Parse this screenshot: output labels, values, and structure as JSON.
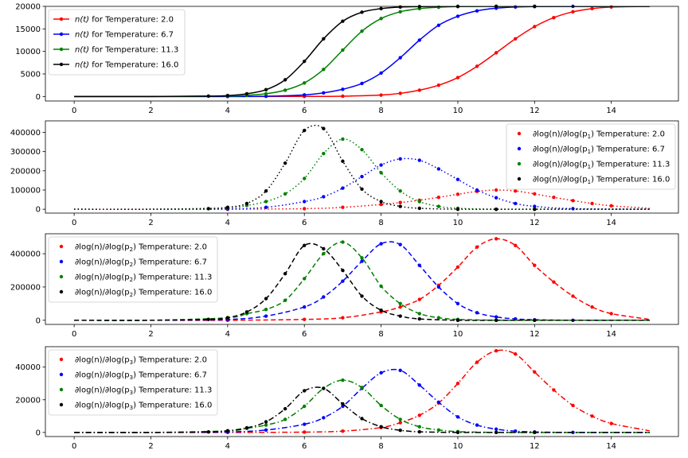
{
  "chart_data": [
    {
      "type": "line",
      "title": "",
      "xlabel": "",
      "ylabel": "",
      "xlim": [
        -0.75,
        15.75
      ],
      "ylim": [
        -1000,
        20000
      ],
      "xticks": [
        0,
        2,
        4,
        6,
        8,
        10,
        12,
        14
      ],
      "yticks": [
        0,
        5000,
        10000,
        15000,
        20000
      ],
      "grid": false,
      "legend": "upper-left",
      "line_style": "solid",
      "marker_style": "line-with-markers",
      "series": [
        {
          "name_prefix": "n(t)",
          "name_suffix": " for Temperature: 2.0",
          "color": "#ff0000",
          "x": [
            0,
            2,
            4,
            6,
            7,
            8,
            8.5,
            9,
            9.5,
            10,
            10.5,
            11,
            11.5,
            12,
            12.5,
            13,
            13.5,
            14,
            15
          ],
          "y": [
            0,
            0,
            0,
            10,
            60,
            320,
            700,
            1400,
            2500,
            4200,
            6700,
            9700,
            12800,
            15500,
            17500,
            18800,
            19500,
            19850,
            20000
          ]
        },
        {
          "name_prefix": "n(t)",
          "name_suffix": " for Temperature: 6.7",
          "color": "#0000ff",
          "x": [
            0,
            2,
            4,
            5,
            6,
            6.5,
            7,
            7.5,
            8,
            8.5,
            9,
            9.5,
            10,
            10.5,
            11,
            11.5,
            12,
            13,
            15
          ],
          "y": [
            0,
            0,
            0,
            50,
            350,
            800,
            1600,
            2900,
            5200,
            8600,
            12500,
            15800,
            17800,
            19000,
            19600,
            19850,
            19950,
            20000,
            20000
          ]
        },
        {
          "name_prefix": "n(t)",
          "name_suffix": " for Temperature: 11.3",
          "color": "#008000",
          "x": [
            0,
            2,
            4,
            4.5,
            5,
            5.5,
            6,
            6.5,
            7,
            7.5,
            8,
            8.5,
            9,
            9.5,
            10,
            11,
            12,
            15
          ],
          "y": [
            0,
            0,
            100,
            250,
            600,
            1400,
            3000,
            6000,
            10300,
            14500,
            17300,
            18800,
            19500,
            19800,
            19950,
            20000,
            20000,
            20000
          ]
        },
        {
          "name_prefix": "n(t)",
          "name_suffix": " for Temperature: 16.0",
          "color": "#000000",
          "x": [
            0,
            2,
            3.5,
            4,
            4.5,
            5,
            5.5,
            6,
            6.5,
            7,
            7.5,
            8,
            8.5,
            9,
            10,
            11,
            12,
            15
          ],
          "y": [
            0,
            0,
            80,
            200,
            600,
            1500,
            3700,
            7800,
            12800,
            16700,
            18700,
            19500,
            19850,
            19950,
            20000,
            20000,
            20000,
            20000
          ]
        }
      ]
    },
    {
      "type": "line",
      "title": "",
      "xlabel": "",
      "ylabel": "",
      "xlim": [
        -0.75,
        15.75
      ],
      "ylim": [
        -20000,
        460000
      ],
      "xticks": [
        0,
        2,
        4,
        6,
        8,
        10,
        12,
        14
      ],
      "yticks": [
        0,
        100000,
        200000,
        300000,
        400000
      ],
      "grid": false,
      "legend": "upper-right",
      "line_style": "dotted",
      "marker_style": "dots-with-curve",
      "series": [
        {
          "name_prefix": "∂log(n)/∂log(p",
          "name_sub": "1",
          "name_suffix": ") Temperature: 2.0",
          "color": "#ff0000",
          "x": [
            0,
            2,
            4,
            6,
            7,
            8,
            8.5,
            9,
            9.5,
            10,
            10.5,
            11,
            11.5,
            12,
            12.5,
            13,
            13.5,
            14,
            15
          ],
          "y": [
            0,
            0,
            0,
            3000,
            10000,
            25000,
            35000,
            47000,
            62000,
            78000,
            93000,
            100000,
            95000,
            80000,
            62000,
            45000,
            30000,
            18000,
            5000
          ]
        },
        {
          "name_prefix": "∂log(n)/∂log(p",
          "name_sub": "1",
          "name_suffix": ") Temperature: 6.7",
          "color": "#0000ff",
          "x": [
            0,
            2,
            4,
            5,
            6,
            6.5,
            7,
            7.5,
            8,
            8.5,
            9,
            9.5,
            10,
            10.5,
            11,
            11.5,
            12,
            13,
            15
          ],
          "y": [
            0,
            0,
            2000,
            10000,
            40000,
            65000,
            110000,
            170000,
            230000,
            262000,
            255000,
            210000,
            155000,
            100000,
            60000,
            30000,
            15000,
            3000,
            0
          ]
        },
        {
          "name_prefix": "∂log(n)/∂log(p",
          "name_sub": "1",
          "name_suffix": ") Temperature: 11.3",
          "color": "#008000",
          "x": [
            0,
            2,
            4,
            4.5,
            5,
            5.5,
            6,
            6.5,
            7,
            7.5,
            8,
            8.5,
            9,
            9.5,
            10,
            11,
            12,
            15
          ],
          "y": [
            0,
            0,
            8000,
            20000,
            40000,
            80000,
            160000,
            290000,
            365000,
            310000,
            190000,
            95000,
            40000,
            15000,
            5000,
            0,
            0,
            0
          ]
        },
        {
          "name_prefix": "∂log(n)/∂log(p",
          "name_sub": "1",
          "name_suffix": ") Temperature: 16.0",
          "color": "#000000",
          "x": [
            0,
            2,
            3.5,
            4,
            4.5,
            5,
            5.5,
            6,
            6.5,
            7,
            7.5,
            8,
            8.5,
            9,
            10,
            11,
            12,
            15
          ],
          "y": [
            0,
            0,
            3000,
            10000,
            30000,
            95000,
            240000,
            410000,
            420000,
            250000,
            105000,
            40000,
            15000,
            5000,
            0,
            0,
            0,
            0
          ]
        }
      ]
    },
    {
      "type": "line",
      "title": "",
      "xlabel": "",
      "ylabel": "",
      "xlim": [
        -0.75,
        15.75
      ],
      "ylim": [
        -25000,
        520000
      ],
      "xticks": [
        0,
        2,
        4,
        6,
        8,
        10,
        12,
        14
      ],
      "yticks": [
        0,
        200000,
        400000
      ],
      "grid": false,
      "legend": "upper-left",
      "line_style": "dashed",
      "marker_style": "dots-with-curve",
      "series": [
        {
          "name_prefix": "∂log(n)/∂log(p",
          "name_sub": "2",
          "name_suffix": ") Temperature: 2.0",
          "color": "#ff0000",
          "x": [
            0,
            2,
            4,
            6,
            7,
            8,
            8.5,
            9,
            9.5,
            10,
            10.5,
            11,
            11.5,
            12,
            12.5,
            13,
            13.5,
            14,
            15
          ],
          "y": [
            0,
            0,
            0,
            5000,
            15000,
            50000,
            80000,
            125000,
            210000,
            320000,
            440000,
            490000,
            450000,
            330000,
            230000,
            145000,
            80000,
            40000,
            5000
          ]
        },
        {
          "name_prefix": "∂log(n)/∂log(p",
          "name_sub": "2",
          "name_suffix": ") Temperature: 6.7",
          "color": "#0000ff",
          "x": [
            0,
            2,
            4,
            5,
            6,
            6.5,
            7,
            7.5,
            8,
            8.5,
            9,
            9.5,
            10,
            10.5,
            11,
            11.5,
            12,
            13,
            15
          ],
          "y": [
            0,
            0,
            5000,
            25000,
            80000,
            140000,
            235000,
            355000,
            460000,
            455000,
            330000,
            200000,
            100000,
            45000,
            20000,
            8000,
            3000,
            0,
            0
          ]
        },
        {
          "name_prefix": "∂log(n)/∂log(p",
          "name_sub": "2",
          "name_suffix": ") Temperature: 11.3",
          "color": "#008000",
          "x": [
            0,
            2,
            4,
            4.5,
            5,
            5.5,
            6,
            6.5,
            7,
            7.5,
            8,
            8.5,
            9,
            9.5,
            10,
            11,
            12,
            15
          ],
          "y": [
            0,
            0,
            15000,
            40000,
            65000,
            120000,
            250000,
            400000,
            470000,
            375000,
            205000,
            100000,
            40000,
            15000,
            5000,
            0,
            0,
            0
          ]
        },
        {
          "name_prefix": "∂log(n)/∂log(p",
          "name_sub": "2",
          "name_suffix": ") Temperature: 16.0",
          "color": "#000000",
          "x": [
            0,
            2,
            3.5,
            4,
            4.5,
            5,
            5.5,
            6,
            6.5,
            7,
            7.5,
            8,
            8.5,
            9,
            10,
            11,
            12,
            15
          ],
          "y": [
            0,
            0,
            5000,
            15000,
            50000,
            130000,
            280000,
            450000,
            430000,
            300000,
            145000,
            60000,
            25000,
            8000,
            0,
            0,
            0,
            0
          ]
        }
      ]
    },
    {
      "type": "line",
      "title": "",
      "xlabel": "",
      "ylabel": "",
      "xlim": [
        -0.75,
        15.75
      ],
      "ylim": [
        -2500,
        52500
      ],
      "xticks": [
        0,
        2,
        4,
        6,
        8,
        10,
        12,
        14
      ],
      "yticks": [
        0,
        20000,
        40000
      ],
      "grid": false,
      "legend": "upper-left",
      "line_style": "dashdot",
      "marker_style": "dots-with-curve",
      "series": [
        {
          "name_prefix": "∂log(n)/∂log(p",
          "name_sub": "3",
          "name_suffix": ") Temperature: 2.0",
          "color": "#ff0000",
          "x": [
            0,
            2,
            4,
            6,
            7,
            8,
            8.5,
            9,
            9.5,
            10,
            10.5,
            11,
            11.5,
            12,
            12.5,
            13,
            13.5,
            14,
            15
          ],
          "y": [
            0,
            0,
            0,
            200,
            800,
            3000,
            6000,
            10500,
            18000,
            30000,
            43000,
            50000,
            48000,
            37000,
            26000,
            16500,
            10000,
            5500,
            1000
          ]
        },
        {
          "name_prefix": "∂log(n)/∂log(p",
          "name_sub": "3",
          "name_suffix": ") Temperature: 6.7",
          "color": "#0000ff",
          "x": [
            0,
            2,
            4,
            5,
            6,
            6.5,
            7,
            7.5,
            8,
            8.5,
            9,
            9.5,
            10,
            10.5,
            11,
            11.5,
            12,
            13,
            15
          ],
          "y": [
            0,
            0,
            300,
            1500,
            5000,
            9000,
            16000,
            27000,
            36500,
            38000,
            29000,
            18500,
            9500,
            4500,
            2000,
            800,
            300,
            0,
            0
          ]
        },
        {
          "name_prefix": "∂log(n)/∂log(p",
          "name_sub": "3",
          "name_suffix": ") Temperature: 11.3",
          "color": "#008000",
          "x": [
            0,
            2,
            4,
            4.5,
            5,
            5.5,
            6,
            6.5,
            7,
            7.5,
            8,
            8.5,
            9,
            9.5,
            10,
            11,
            12,
            15
          ],
          "y": [
            0,
            0,
            1000,
            2500,
            4500,
            8000,
            16000,
            27000,
            32000,
            27500,
            16500,
            8000,
            3500,
            1500,
            500,
            0,
            0,
            0
          ]
        },
        {
          "name_prefix": "∂log(n)/∂log(p",
          "name_sub": "3",
          "name_suffix": ") Temperature: 16.0",
          "color": "#000000",
          "x": [
            0,
            2,
            3.5,
            4,
            4.5,
            5,
            5.5,
            6,
            6.5,
            7,
            7.5,
            8,
            8.5,
            9,
            10,
            11,
            12,
            15
          ],
          "y": [
            0,
            0,
            300,
            1000,
            2800,
            6500,
            14500,
            25500,
            27000,
            17500,
            8500,
            3500,
            1300,
            400,
            0,
            0,
            0,
            0
          ]
        }
      ]
    }
  ]
}
